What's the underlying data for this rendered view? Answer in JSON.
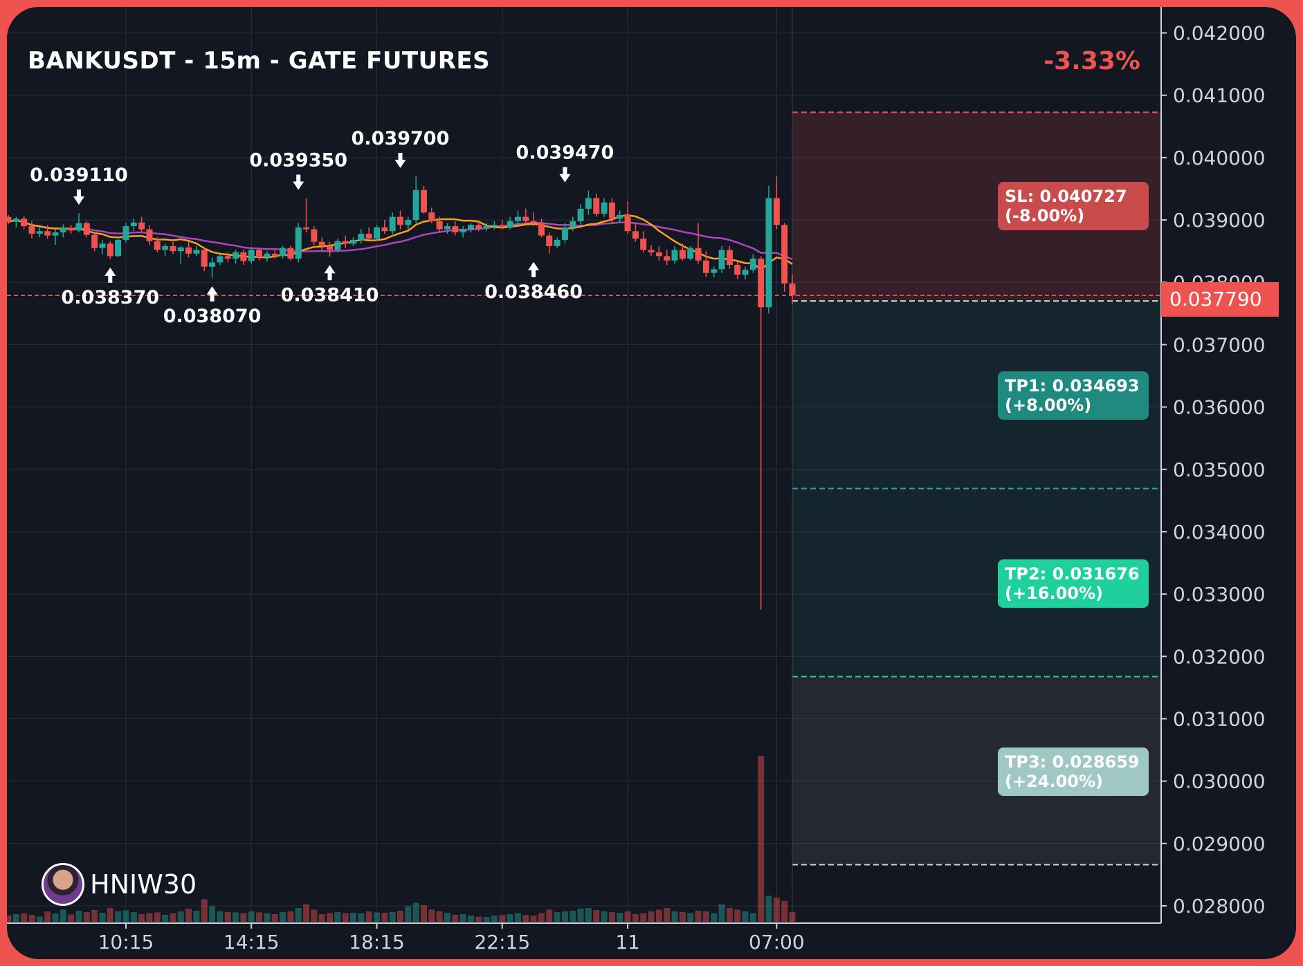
{
  "header": {
    "title": "BANKUSDT - 15m - GATE FUTURES",
    "change": "-3.33%"
  },
  "watermark": {
    "name": "HNIW30",
    "icon": "avatar-icon"
  },
  "current_price": "0.037790",
  "levels": {
    "sl": {
      "line1": "SL: 0.040727",
      "line2": "(-8.00%)",
      "value": 0.040727,
      "color": "#c94b4b"
    },
    "entry": {
      "value": 0.0377
    },
    "tp1": {
      "line1": "TP1: 0.034693",
      "line2": "(+8.00%)",
      "value": 0.034693,
      "color": "#1f8a80"
    },
    "tp2": {
      "line1": "TP2: 0.031676",
      "line2": "(+16.00%)",
      "value": 0.031676,
      "color": "#1fcf9c"
    },
    "tp3": {
      "line1": "TP3: 0.028659",
      "line2": "(+24.00%)",
      "value": 0.028659,
      "color": "#9fc7c4"
    }
  },
  "colors": {
    "up": "#26a69a",
    "down": "#ef5350",
    "ma_fast": "#f7a21b",
    "ma_slow": "#ab47bc",
    "background": "#131722",
    "grid": "#2a2e39"
  },
  "chart_data": {
    "type": "candlestick",
    "title": "BANKUSDT - 15m - GATE FUTURES",
    "ylim": [
      0.0278,
      0.0424
    ],
    "y_ticks": [
      "0.042000",
      "0.041000",
      "0.040000",
      "0.039000",
      "0.038000",
      "0.037000",
      "0.036000",
      "0.035000",
      "0.034000",
      "0.033000",
      "0.032000",
      "0.031000",
      "0.030000",
      "0.029000",
      "0.028000"
    ],
    "x_ticks": [
      {
        "label": "10:15",
        "index": 15
      },
      {
        "label": "14:15",
        "index": 31
      },
      {
        "label": "18:15",
        "index": 47
      },
      {
        "label": "22:15",
        "index": 63
      },
      {
        "label": "11",
        "index": 79
      },
      {
        "label": "07:00",
        "index": 98
      }
    ],
    "annotations": [
      {
        "text": "0.039110",
        "index": 9,
        "value": 0.03911,
        "kind": "high"
      },
      {
        "text": "0.038370",
        "index": 13,
        "value": 0.03837,
        "kind": "low"
      },
      {
        "text": "0.038070",
        "index": 26,
        "value": 0.03807,
        "kind": "low"
      },
      {
        "text": "0.039350",
        "index": 37,
        "value": 0.03935,
        "kind": "high"
      },
      {
        "text": "0.038410",
        "index": 41,
        "value": 0.03841,
        "kind": "low"
      },
      {
        "text": "0.039700",
        "index": 50,
        "value": 0.0397,
        "kind": "high"
      },
      {
        "text": "0.038460",
        "index": 67,
        "value": 0.03846,
        "kind": "low"
      },
      {
        "text": "0.039470",
        "index": 71,
        "value": 0.03947,
        "kind": "high"
      }
    ],
    "candles": [
      [
        0.03905,
        0.03908,
        0.03893,
        0.03897,
        18
      ],
      [
        0.03897,
        0.03905,
        0.03888,
        0.03902,
        22
      ],
      [
        0.03902,
        0.03906,
        0.03885,
        0.0389,
        25
      ],
      [
        0.0389,
        0.03898,
        0.0387,
        0.03878,
        20
      ],
      [
        0.03878,
        0.03888,
        0.03872,
        0.03882,
        15
      ],
      [
        0.03882,
        0.03892,
        0.0387,
        0.03875,
        30
      ],
      [
        0.03875,
        0.03885,
        0.0386,
        0.0388,
        24
      ],
      [
        0.0388,
        0.03893,
        0.03872,
        0.03887,
        35
      ],
      [
        0.03887,
        0.03892,
        0.03878,
        0.03883,
        21
      ],
      [
        0.03883,
        0.03911,
        0.0388,
        0.03895,
        32
      ],
      [
        0.03895,
        0.03898,
        0.03872,
        0.03876,
        28
      ],
      [
        0.03876,
        0.0388,
        0.0385,
        0.03855,
        34
      ],
      [
        0.03855,
        0.03868,
        0.03845,
        0.03862,
        26
      ],
      [
        0.03862,
        0.03866,
        0.03837,
        0.03842,
        40
      ],
      [
        0.03842,
        0.03872,
        0.0384,
        0.03868,
        30
      ],
      [
        0.03868,
        0.03895,
        0.03864,
        0.0389,
        33
      ],
      [
        0.0389,
        0.03902,
        0.03882,
        0.03896,
        28
      ],
      [
        0.03896,
        0.03905,
        0.0388,
        0.03885,
        22
      ],
      [
        0.03885,
        0.03892,
        0.0386,
        0.03866,
        25
      ],
      [
        0.03866,
        0.03872,
        0.03848,
        0.03852,
        27
      ],
      [
        0.03852,
        0.03862,
        0.03842,
        0.03858,
        20
      ],
      [
        0.03858,
        0.03865,
        0.03845,
        0.0385,
        25
      ],
      [
        0.0385,
        0.03858,
        0.0383,
        0.03856,
        30
      ],
      [
        0.03856,
        0.03865,
        0.0384,
        0.03846,
        38
      ],
      [
        0.03846,
        0.03858,
        0.03842,
        0.03852,
        32
      ],
      [
        0.03852,
        0.03855,
        0.03818,
        0.03825,
        65
      ],
      [
        0.03825,
        0.0384,
        0.03807,
        0.03832,
        45
      ],
      [
        0.03832,
        0.03845,
        0.03828,
        0.03842,
        30
      ],
      [
        0.03842,
        0.03848,
        0.03832,
        0.03838,
        28
      ],
      [
        0.03838,
        0.03852,
        0.0383,
        0.03848,
        27
      ],
      [
        0.03848,
        0.03852,
        0.03828,
        0.03834,
        25
      ],
      [
        0.03834,
        0.03856,
        0.0383,
        0.03852,
        30
      ],
      [
        0.03852,
        0.03856,
        0.03835,
        0.0384,
        27
      ],
      [
        0.0384,
        0.0385,
        0.03833,
        0.03846,
        25
      ],
      [
        0.03846,
        0.03852,
        0.03838,
        0.03842,
        22
      ],
      [
        0.03842,
        0.03858,
        0.03838,
        0.03855,
        28
      ],
      [
        0.03855,
        0.03858,
        0.03835,
        0.03838,
        30
      ],
      [
        0.03838,
        0.03895,
        0.03832,
        0.03888,
        40
      ],
      [
        0.03888,
        0.03935,
        0.0388,
        0.03885,
        50
      ],
      [
        0.03885,
        0.0389,
        0.0386,
        0.03865,
        35
      ],
      [
        0.03865,
        0.03872,
        0.0385,
        0.03858,
        22
      ],
      [
        0.03858,
        0.03865,
        0.03841,
        0.03852,
        25
      ],
      [
        0.03852,
        0.0387,
        0.03848,
        0.03866,
        28
      ],
      [
        0.03866,
        0.03875,
        0.03855,
        0.03862,
        25
      ],
      [
        0.03862,
        0.03872,
        0.03858,
        0.03868,
        26
      ],
      [
        0.03868,
        0.03885,
        0.03862,
        0.03878,
        24
      ],
      [
        0.03878,
        0.03888,
        0.03868,
        0.0387,
        30
      ],
      [
        0.0387,
        0.03892,
        0.03866,
        0.03888,
        27
      ],
      [
        0.03888,
        0.039,
        0.03878,
        0.03882,
        26
      ],
      [
        0.03882,
        0.03912,
        0.03878,
        0.03905,
        28
      ],
      [
        0.03905,
        0.03915,
        0.03885,
        0.03892,
        32
      ],
      [
        0.03892,
        0.03905,
        0.03885,
        0.039,
        45
      ],
      [
        0.039,
        0.0397,
        0.03895,
        0.03948,
        55
      ],
      [
        0.03948,
        0.03955,
        0.0391,
        0.03912,
        48
      ],
      [
        0.03912,
        0.0392,
        0.03895,
        0.03898,
        35
      ],
      [
        0.03898,
        0.03905,
        0.0388,
        0.03885,
        30
      ],
      [
        0.03885,
        0.03895,
        0.03878,
        0.0389,
        26
      ],
      [
        0.0389,
        0.03898,
        0.03875,
        0.0388,
        20
      ],
      [
        0.0388,
        0.0389,
        0.03872,
        0.03885,
        22
      ],
      [
        0.03885,
        0.03895,
        0.0388,
        0.03892,
        18
      ],
      [
        0.03892,
        0.03898,
        0.03882,
        0.03886,
        15
      ],
      [
        0.03886,
        0.03895,
        0.03882,
        0.0389,
        14
      ],
      [
        0.0389,
        0.03898,
        0.03885,
        0.03892,
        18
      ],
      [
        0.03892,
        0.039,
        0.03885,
        0.03888,
        20
      ],
      [
        0.03888,
        0.03905,
        0.03885,
        0.03898,
        22
      ],
      [
        0.03898,
        0.03915,
        0.03892,
        0.03905,
        25
      ],
      [
        0.03905,
        0.03918,
        0.03895,
        0.03898,
        20
      ],
      [
        0.03898,
        0.03912,
        0.0389,
        0.03895,
        18
      ],
      [
        0.03895,
        0.03902,
        0.03872,
        0.03875,
        25
      ],
      [
        0.03875,
        0.0388,
        0.03846,
        0.03858,
        35
      ],
      [
        0.03858,
        0.03872,
        0.03855,
        0.03868,
        28
      ],
      [
        0.03868,
        0.03895,
        0.03862,
        0.03888,
        30
      ],
      [
        0.03888,
        0.03905,
        0.03882,
        0.03898,
        32
      ],
      [
        0.03898,
        0.03925,
        0.03892,
        0.03918,
        38
      ],
      [
        0.03918,
        0.03947,
        0.03908,
        0.03935,
        40
      ],
      [
        0.03935,
        0.03942,
        0.03905,
        0.0391,
        34
      ],
      [
        0.0391,
        0.03935,
        0.03905,
        0.03928,
        30
      ],
      [
        0.03928,
        0.03935,
        0.03895,
        0.03902,
        28
      ],
      [
        0.03902,
        0.03915,
        0.03895,
        0.03908,
        26
      ],
      [
        0.03908,
        0.0393,
        0.03878,
        0.03882,
        30
      ],
      [
        0.03882,
        0.03895,
        0.03865,
        0.0387,
        22
      ],
      [
        0.0387,
        0.03882,
        0.03848,
        0.03852,
        25
      ],
      [
        0.03852,
        0.0386,
        0.03842,
        0.03848,
        30
      ],
      [
        0.03848,
        0.03858,
        0.03835,
        0.03842,
        35
      ],
      [
        0.03842,
        0.03852,
        0.03828,
        0.03835,
        40
      ],
      [
        0.03835,
        0.03858,
        0.0383,
        0.03852,
        30
      ],
      [
        0.03852,
        0.03862,
        0.03835,
        0.03838,
        28
      ],
      [
        0.03838,
        0.03858,
        0.03835,
        0.03855,
        25
      ],
      [
        0.03855,
        0.03895,
        0.0383,
        0.03835,
        32
      ],
      [
        0.03835,
        0.0385,
        0.03808,
        0.03815,
        30
      ],
      [
        0.03815,
        0.03825,
        0.03808,
        0.03821,
        25
      ],
      [
        0.03821,
        0.03858,
        0.03815,
        0.03852,
        50
      ],
      [
        0.03852,
        0.03858,
        0.03822,
        0.03828,
        40
      ],
      [
        0.03828,
        0.03835,
        0.03805,
        0.03812,
        35
      ],
      [
        0.03812,
        0.03825,
        0.03805,
        0.0382,
        30
      ],
      [
        0.0382,
        0.03845,
        0.03815,
        0.03838,
        25
      ],
      [
        0.03838,
        0.03842,
        0.03275,
        0.0376,
        480
      ],
      [
        0.0376,
        0.03955,
        0.0375,
        0.03935,
        75
      ],
      [
        0.03935,
        0.0397,
        0.03885,
        0.03892,
        70
      ],
      [
        0.03892,
        0.03895,
        0.03785,
        0.03798,
        60
      ],
      [
        0.03798,
        0.03812,
        0.03765,
        0.03779,
        28
      ]
    ],
    "ma_fast_period": 9,
    "ma_slow_period": 21
  }
}
